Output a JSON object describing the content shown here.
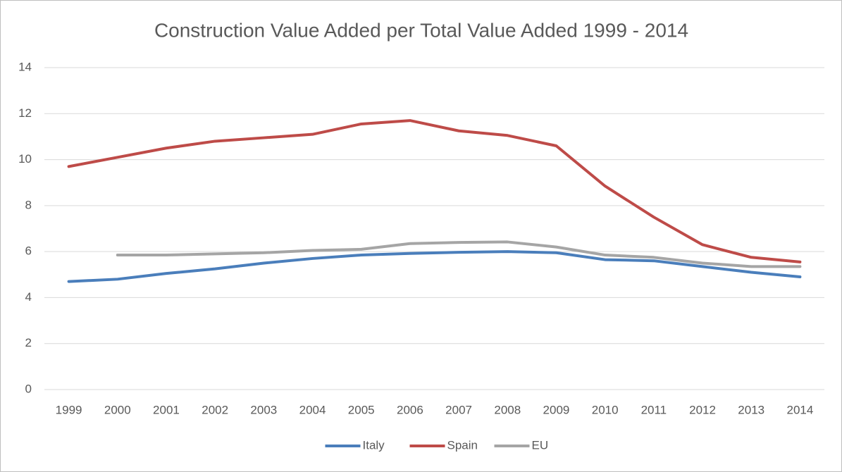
{
  "chart_data": {
    "type": "line",
    "title": "Construction Value Added per Total Value Added 1999 - 2014",
    "categories": [
      "1999",
      "2000",
      "2001",
      "2002",
      "2003",
      "2004",
      "2005",
      "2006",
      "2007",
      "2008",
      "2009",
      "2010",
      "2011",
      "2012",
      "2013",
      "2014"
    ],
    "series": [
      {
        "name": "Italy",
        "color": "#4a7ebb",
        "values": [
          4.7,
          4.8,
          5.05,
          5.25,
          5.5,
          5.7,
          5.85,
          5.92,
          5.97,
          6.0,
          5.95,
          5.65,
          5.6,
          5.35,
          5.1,
          4.9
        ]
      },
      {
        "name": "Spain",
        "color": "#be4b48",
        "values": [
          9.7,
          10.1,
          10.5,
          10.8,
          10.95,
          11.1,
          11.55,
          11.7,
          11.25,
          11.05,
          10.6,
          8.85,
          7.5,
          6.3,
          5.75,
          5.55
        ]
      },
      {
        "name": "EU",
        "color": "#a5a5a5",
        "values": [
          null,
          5.85,
          5.85,
          5.9,
          5.95,
          6.05,
          6.1,
          6.35,
          6.4,
          6.42,
          6.2,
          5.85,
          5.75,
          5.5,
          5.35,
          5.35
        ]
      }
    ],
    "ylim": [
      0,
      14
    ],
    "yticks": [
      0,
      2,
      4,
      6,
      8,
      10,
      12,
      14
    ],
    "grid": true,
    "legend": "bottom"
  }
}
